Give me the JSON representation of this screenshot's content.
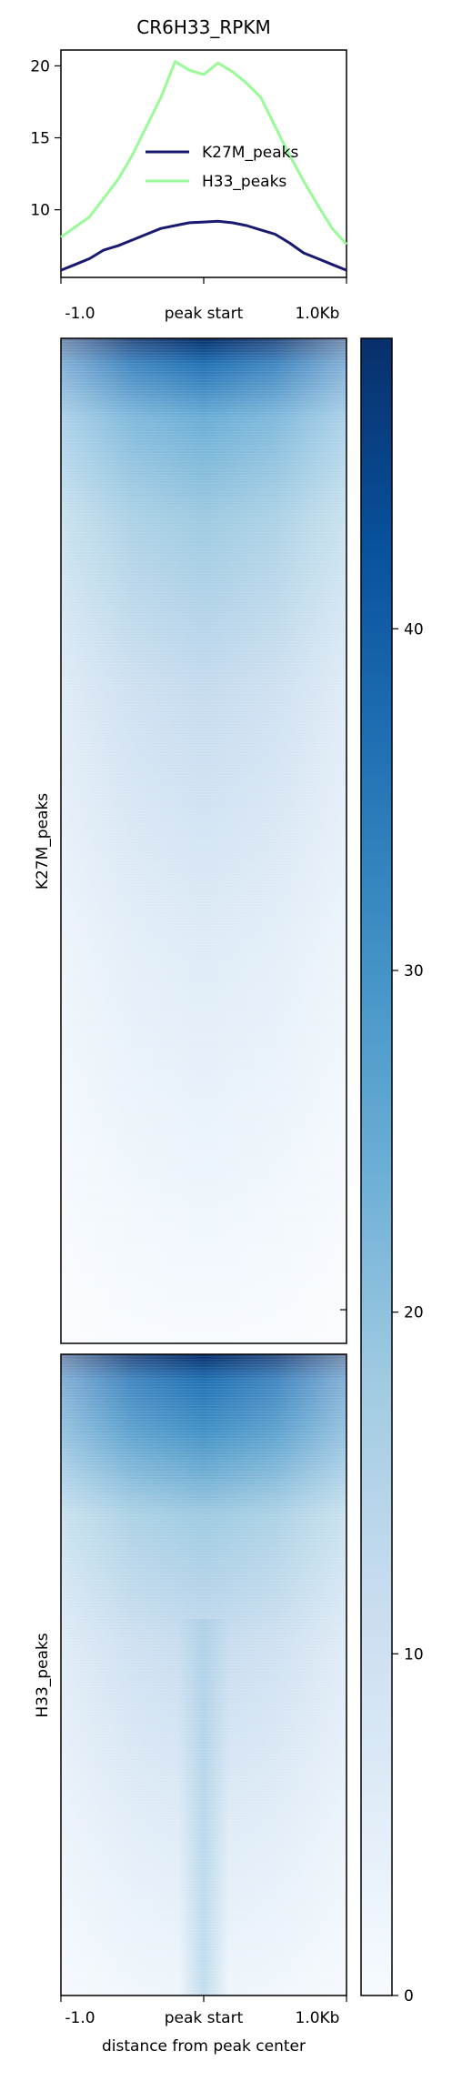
{
  "title": "CR6H33_RPKM",
  "profile": {
    "yticks": [
      10,
      15,
      20
    ],
    "ylim": [
      5.3,
      21.1
    ],
    "xticks": [
      "-1.0",
      "peak start",
      "1.0Kb"
    ],
    "legend": [
      {
        "name": "K27M_peaks",
        "color": "#191970"
      },
      {
        "name": "H33_peaks",
        "color": "#98fb98"
      }
    ]
  },
  "heatmap": {
    "groups": [
      "K27M_peaks",
      "H33_peaks"
    ],
    "xlabel": "distance from peak center",
    "xticks": [
      "-1.0",
      "peak start",
      "1.0Kb"
    ],
    "cmap": "Blues",
    "colors": [
      "#f7fbff",
      "#deebf7",
      "#c6dbef",
      "#9ecae1",
      "#6baed6",
      "#4292c6",
      "#2171b5",
      "#08519c",
      "#08306b"
    ]
  },
  "colorbar": {
    "ticks": [
      0,
      10,
      20,
      30,
      40
    ],
    "range": [
      0,
      48.5
    ]
  },
  "chart_data": {
    "type": "line",
    "title": "CR6H33_RPKM",
    "xlabel": "",
    "ylabel": "",
    "x_range": [
      -1.0,
      1.0
    ],
    "ylim": [
      5.3,
      21.1
    ],
    "x": [
      -1.0,
      -0.9,
      -0.8,
      -0.7,
      -0.6,
      -0.5,
      -0.4,
      -0.3,
      -0.2,
      -0.1,
      0.0,
      0.1,
      0.2,
      0.3,
      0.4,
      0.5,
      0.6,
      0.7,
      0.8,
      0.9,
      1.0
    ],
    "series": [
      {
        "name": "K27M_peaks",
        "values": [
          5.8,
          6.2,
          6.6,
          7.2,
          7.5,
          7.9,
          8.3,
          8.7,
          8.9,
          9.1,
          9.15,
          9.2,
          9.1,
          8.9,
          8.6,
          8.3,
          7.7,
          7.0,
          6.6,
          6.2,
          5.8
        ]
      },
      {
        "name": "H33_peaks",
        "values": [
          8.1,
          8.8,
          9.5,
          10.8,
          12.1,
          13.8,
          15.8,
          17.8,
          20.3,
          19.7,
          19.4,
          20.2,
          19.6,
          18.8,
          17.8,
          15.8,
          13.8,
          12.0,
          10.3,
          8.7,
          7.6
        ]
      }
    ],
    "heatmap_groups": [
      "K27M_peaks",
      "H33_peaks"
    ],
    "colorbar_range": [
      0,
      48.5
    ],
    "colorbar_ticks": [
      0,
      10,
      20,
      30,
      40
    ]
  }
}
